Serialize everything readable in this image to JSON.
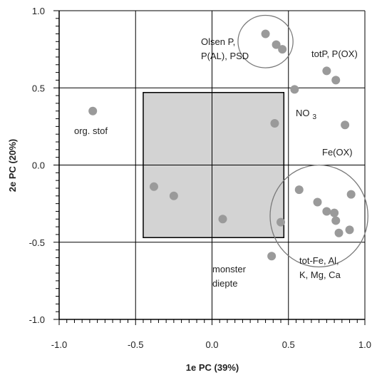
{
  "chart_data": {
    "type": "scatter",
    "title": "",
    "xlabel": "1e PC (39%)",
    "ylabel": "2e PC (20%)",
    "xlim": [
      -1.0,
      1.0
    ],
    "ylim": [
      -1.0,
      1.0
    ],
    "x_ticks": [
      -1.0,
      -0.5,
      0.0,
      0.5,
      1.0
    ],
    "y_ticks": [
      -1.0,
      -0.5,
      0.0,
      0.5,
      1.0
    ],
    "x_tick_labels": [
      "-1.0",
      "-0.5",
      "0.0",
      "0.5",
      "1.0"
    ],
    "y_tick_labels": [
      "-1.0",
      "-0.5",
      "0.0",
      "0.5",
      "1.0"
    ],
    "grid": true,
    "colors": {
      "points": "#9a9a9a",
      "shaded": "#d3d3d3",
      "grid": "#000000",
      "ellipse": "#7a7a7a"
    },
    "shaded_region": {
      "x": [
        -0.45,
        0.47
      ],
      "y": [
        -0.47,
        0.47
      ]
    },
    "points": [
      {
        "x": -0.78,
        "y": 0.35
      },
      {
        "x": 0.35,
        "y": 0.85
      },
      {
        "x": 0.42,
        "y": 0.78
      },
      {
        "x": 0.46,
        "y": 0.75
      },
      {
        "x": 0.75,
        "y": 0.61
      },
      {
        "x": 0.81,
        "y": 0.55
      },
      {
        "x": 0.54,
        "y": 0.49
      },
      {
        "x": 0.41,
        "y": 0.27
      },
      {
        "x": 0.87,
        "y": 0.26
      },
      {
        "x": -0.38,
        "y": -0.14
      },
      {
        "x": -0.25,
        "y": -0.2
      },
      {
        "x": 0.07,
        "y": -0.35
      },
      {
        "x": 0.45,
        "y": -0.37
      },
      {
        "x": 0.57,
        "y": -0.16
      },
      {
        "x": 0.69,
        "y": -0.24
      },
      {
        "x": 0.75,
        "y": -0.3
      },
      {
        "x": 0.8,
        "y": -0.31
      },
      {
        "x": 0.81,
        "y": -0.36
      },
      {
        "x": 0.83,
        "y": -0.44
      },
      {
        "x": 0.9,
        "y": -0.42
      },
      {
        "x": 0.91,
        "y": -0.19
      },
      {
        "x": 0.39,
        "y": -0.59
      }
    ],
    "annotations": [
      {
        "lines": [
          "Olsen P,",
          "P(AL), PSD"
        ]
      },
      {
        "lines": [
          "totP, P(OX)"
        ]
      },
      {
        "lines": [
          "NO"
        ],
        "subscript": "3"
      },
      {
        "lines": [
          "Fe(OX)"
        ]
      },
      {
        "lines": [
          "org. stof"
        ]
      },
      {
        "lines": [
          "tot-Fe, Al,",
          "K, Mg, Ca"
        ]
      },
      {
        "lines": [
          "monster",
          "diepte"
        ]
      }
    ],
    "ellipses": [
      {
        "cx": 0.35,
        "cy": 0.8,
        "rx": 0.18,
        "ry": 0.17
      },
      {
        "cx": 0.7,
        "cy": -0.33,
        "rx": 0.32,
        "ry": 0.33
      }
    ]
  }
}
